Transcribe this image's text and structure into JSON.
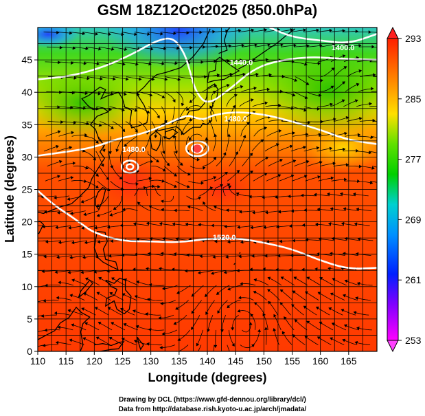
{
  "chart_data": {
    "type": "heatmap",
    "title": "GSM 18Z12Oct2025 (850.0hPa)",
    "xlabel": "Longitude (degrees)",
    "ylabel": "Latitude  (degrees)",
    "xlim": [
      110,
      170
    ],
    "ylim": [
      0,
      50
    ],
    "x_ticks": [
      110,
      115,
      120,
      125,
      130,
      135,
      140,
      145,
      150,
      155,
      160,
      165
    ],
    "y_ticks": [
      0,
      5,
      10,
      15,
      20,
      25,
      30,
      35,
      40,
      45
    ],
    "grid": true,
    "colorbar": {
      "ticks": [
        293,
        285,
        277,
        269,
        261,
        253
      ],
      "range": [
        253,
        293
      ],
      "orientation": "vertical",
      "placement": "right"
    },
    "contour_labels": [
      {
        "text": "1400.0",
        "lon": 164,
        "lat": 46.5
      },
      {
        "text": "1440.0",
        "lon": 146,
        "lat": 44.2
      },
      {
        "text": "1480.0",
        "lon": 145,
        "lat": 35.5
      },
      {
        "text": "1480.0",
        "lon": 127,
        "lat": 30.8
      },
      {
        "text": "1520.0",
        "lon": 143,
        "lat": 17.2
      }
    ]
  },
  "credits": {
    "line1": "Drawing by DCL (https://www.gfd-dennou.org/library/dcl/)",
    "line2": "Data from http://database.rish.kyoto-u.ac.jp/arch/jmadata/"
  },
  "colors": {
    "warm": "#ff4000",
    "green": "#30d000",
    "cold": "#1060ff",
    "contour": "#ffffff"
  }
}
